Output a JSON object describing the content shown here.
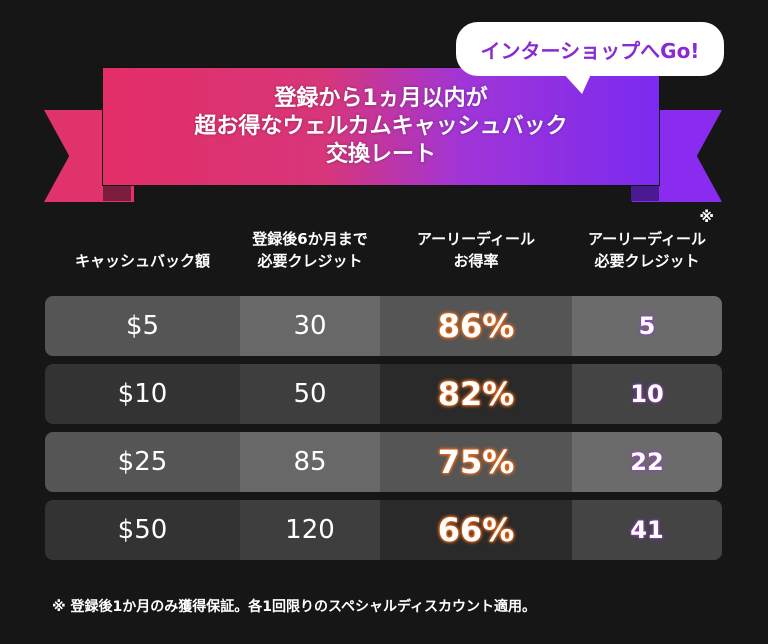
{
  "banner": {
    "line1": "登録から1ヵ月以内が",
    "line2": "超お得なウェルカムキャッシュバック",
    "line3": "交換レート"
  },
  "bubble": "インターショップへGo!",
  "headers": {
    "cashback": "キャッシュバック額",
    "req1": "登録後6か月まで",
    "req2": "必要クレジット",
    "rate1": "アーリーディール",
    "rate2": "お得率",
    "mark": "※",
    "early1": "アーリーディール",
    "early2": "必要クレジット"
  },
  "rows": [
    {
      "cashback": "$5",
      "credits": "30",
      "rate": "86%",
      "early": "5"
    },
    {
      "cashback": "$10",
      "credits": "50",
      "rate": "82%",
      "early": "10"
    },
    {
      "cashback": "$25",
      "credits": "85",
      "rate": "75%",
      "early": "22"
    },
    {
      "cashback": "$50",
      "credits": "120",
      "rate": "66%",
      "early": "41"
    }
  ],
  "note": "※  登録後1か月のみ獲得保証。各1回限りのスペシャルディスカウント適用。",
  "colors": {
    "pink": "#e42e68",
    "purple": "#7b2af0",
    "rate_glow": "#f06a1c"
  }
}
